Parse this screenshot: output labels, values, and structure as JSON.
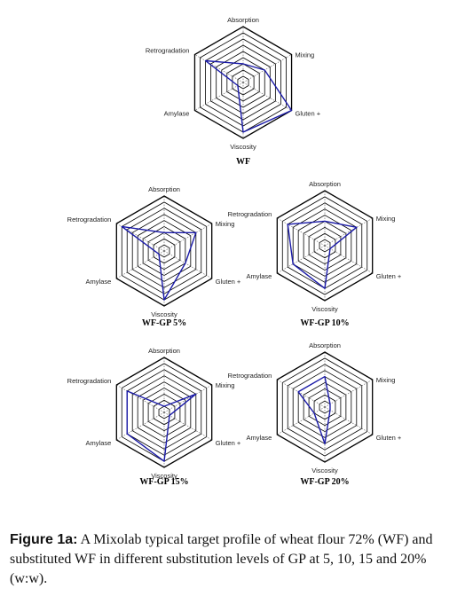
{
  "figure": {
    "caption_label": "Figure 1a:",
    "caption_text": " A Mixolab typical target profile of wheat flour 72% (WF) and substituted WF in different substitution levels of GP at 5, 10, 15 and 20% (w:w)."
  },
  "style": {
    "grid_color": "#000000",
    "series_color": "#1a1aa8"
  },
  "chart_data": [
    {
      "type": "radar",
      "title": "WF",
      "axes": [
        "Absorption",
        "Mixing",
        "Gluten +",
        "Viscosity",
        "Amylase",
        "Retrogradation"
      ],
      "range": [
        0,
        9
      ],
      "rings": 9,
      "values": [
        3,
        4,
        9,
        8,
        1,
        7
      ]
    },
    {
      "type": "radar",
      "title": "WF-GP 5%",
      "axes": [
        "Absorption",
        "Mixing",
        "Gluten +",
        "Viscosity",
        "Amylase",
        "Retrogradation"
      ],
      "range": [
        0,
        9
      ],
      "rings": 9,
      "values": [
        3,
        6,
        4,
        8,
        1,
        8
      ]
    },
    {
      "type": "radar",
      "title": "WF-GP 10%",
      "axes": [
        "Absorption",
        "Mixing",
        "Gluten +",
        "Viscosity",
        "Amylase",
        "Retrogradation"
      ],
      "range": [
        0,
        9
      ],
      "rings": 9,
      "values": [
        4,
        6,
        1,
        7,
        6,
        7
      ]
    },
    {
      "type": "radar",
      "title": "WF-GP 15%",
      "axes": [
        "Absorption",
        "Mixing",
        "Gluten +",
        "Viscosity",
        "Amylase",
        "Retrogradation"
      ],
      "range": [
        0,
        9
      ],
      "rings": 9,
      "values": [
        1,
        6,
        1,
        8,
        7,
        7
      ]
    },
    {
      "type": "radar",
      "title": "WF-GP 20%",
      "axes": [
        "Absorption",
        "Mixing",
        "Gluten +",
        "Viscosity",
        "Amylase",
        "Retrogradation"
      ],
      "range": [
        0,
        9
      ],
      "rings": 9,
      "values": [
        5,
        1,
        1,
        6,
        2,
        5
      ]
    }
  ]
}
